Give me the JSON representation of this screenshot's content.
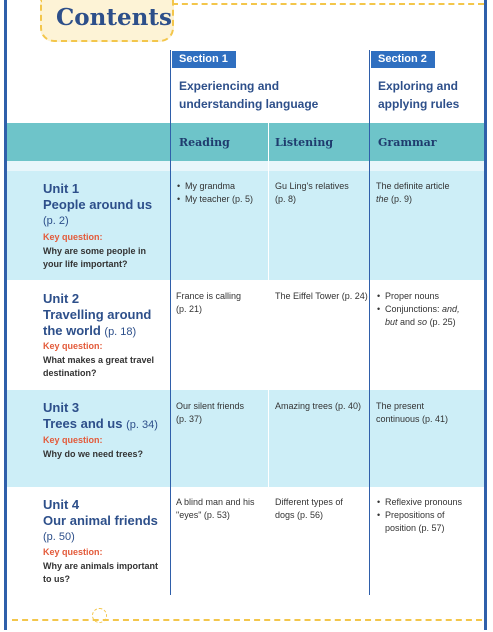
{
  "title": "Contents",
  "sections": [
    {
      "tab": "Section 1",
      "line1": "Experiencing and",
      "line2": "understanding language"
    },
    {
      "tab": "Section 2",
      "line1": "Exploring and",
      "line2": "applying rules"
    }
  ],
  "subheaders": [
    "Reading",
    "Listening",
    "Grammar"
  ],
  "key_label": "Key question:",
  "units": [
    {
      "unit": "Unit 1",
      "name": "People around us",
      "page": "(p. 2)",
      "question_l1": "Why are some people in",
      "question_l2": "your life important?",
      "reading": [
        "My grandma",
        "My teacher (p. 5)"
      ],
      "listening_l1": "Gu Ling's relatives",
      "listening_l2": "(p. 8)",
      "grammar_l1": "The definite article",
      "grammar_em": "the",
      "grammar_l2": " (p. 9)"
    },
    {
      "unit": "Unit 2",
      "name_l1": "Travelling around",
      "name_l2": "the world",
      "page": "(p. 18)",
      "question_l1": "What makes a great travel",
      "question_l2": "destination?",
      "reading_l1": "France is calling",
      "reading_l2": "(p. 21)",
      "listening": "The Eiffel Tower (p. 24)",
      "grammar_1": "Proper nouns",
      "grammar_2a": "Conjunctions: ",
      "grammar_2b": "and,",
      "grammar_2c": "but",
      "grammar_2d": " and ",
      "grammar_2e": "so",
      "grammar_2f": " (p. 25)"
    },
    {
      "unit": "Unit 3",
      "name": "Trees and us",
      "page": "(p. 34)",
      "question_l1": "Why do we need trees?",
      "reading_l1": "Our silent friends",
      "reading_l2": "(p. 37)",
      "listening": "Amazing trees (p. 40)",
      "grammar_l1": "The present",
      "grammar_l2": "continuous (p. 41)"
    },
    {
      "unit": "Unit 4",
      "name": "Our animal friends",
      "page": "(p. 50)",
      "question_l1": "Why are animals important",
      "question_l2": "to us?",
      "reading_l1": "A blind man and his",
      "reading_l2": "\"eyes\" (p. 53)",
      "listening_l1": "Different types of",
      "listening_l2": "dogs (p. 56)",
      "grammar": [
        "Reflexive pronouns",
        "Prepositions of",
        "position (p. 57)"
      ]
    }
  ]
}
